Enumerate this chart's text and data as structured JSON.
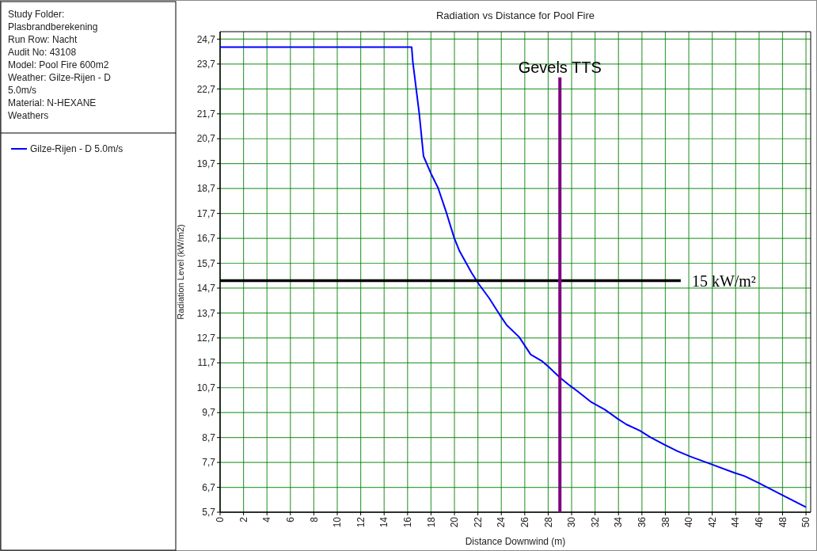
{
  "chart_data": {
    "type": "line",
    "title": "Radiation vs Distance for Pool Fire",
    "xlabel": "Distance Downwind (m)",
    "ylabel": "Radiation Level (kW/m2)",
    "annotations": [
      "Study Folder:",
      "Plasbrandberekening",
      "Run Row: Nacht",
      "Audit No: 43108",
      "Model: Pool Fire 600m2",
      "Weather: Gilze-Rijen - D",
      "5.0m/s",
      "Material: N-HEXANE",
      "Weathers"
    ],
    "series": [
      {
        "name": "Gilze-Rijen - D 5.0m/s",
        "color": "#0000ff",
        "x": [
          0,
          16.35,
          16.45,
          17.0,
          17.36,
          18.04,
          18.6,
          19.28,
          19.97,
          20.43,
          21.46,
          22.04,
          22.96,
          23.99,
          24.45,
          25.53,
          26.51,
          27.5,
          28.01,
          28.97,
          29.84,
          30.53,
          31.68,
          32.83,
          33.97,
          34.66,
          35.81,
          36.73,
          37.88,
          39.03,
          40.17,
          42.01,
          43.85,
          44.76,
          45.91,
          47.98,
          50
        ],
        "values": [
          24.38,
          24.38,
          23.78,
          21.7,
          20.0,
          19.26,
          18.73,
          17.78,
          16.73,
          16.19,
          15.32,
          14.89,
          14.3,
          13.54,
          13.22,
          12.73,
          12.03,
          11.76,
          11.55,
          11.12,
          10.79,
          10.55,
          10.12,
          9.82,
          9.44,
          9.23,
          8.98,
          8.71,
          8.42,
          8.15,
          7.93,
          7.61,
          7.29,
          7.15,
          6.89,
          6.39,
          5.9
        ]
      }
    ],
    "xlim": [
      0,
      50.4
    ],
    "xticks": [
      0,
      2,
      4,
      6,
      8,
      10,
      12,
      14,
      16,
      18,
      20,
      22,
      24,
      26,
      28,
      30,
      32,
      34,
      36,
      38,
      40,
      42,
      44,
      46,
      48,
      50
    ],
    "ylim": [
      5.7,
      25.0
    ],
    "yticks": [
      {
        "value": 5.7,
        "label": "5,7"
      },
      {
        "value": 6.7,
        "label": "6,7"
      },
      {
        "value": 7.7,
        "label": "7,7"
      },
      {
        "value": 8.7,
        "label": "8,7"
      },
      {
        "value": 9.7,
        "label": "9,7"
      },
      {
        "value": 10.7,
        "label": "10,7"
      },
      {
        "value": 11.7,
        "label": "11,7"
      },
      {
        "value": 12.7,
        "label": "12,7"
      },
      {
        "value": 13.7,
        "label": "13,7"
      },
      {
        "value": 14.7,
        "label": "14,7"
      },
      {
        "value": 15.7,
        "label": "15,7"
      },
      {
        "value": 16.7,
        "label": "16,7"
      },
      {
        "value": 17.7,
        "label": "17,7"
      },
      {
        "value": 18.7,
        "label": "18,7"
      },
      {
        "value": 19.7,
        "label": "19,7"
      },
      {
        "value": 20.7,
        "label": "20,7"
      },
      {
        "value": 21.7,
        "label": "21,7"
      },
      {
        "value": 22.7,
        "label": "22,7"
      },
      {
        "value": 23.7,
        "label": "23,7"
      },
      {
        "value": 24.7,
        "label": "24,7"
      }
    ],
    "ref_lines": [
      {
        "axis": "y",
        "value": 15,
        "label": "15 kW/m²",
        "color": "#000000"
      },
      {
        "axis": "x",
        "value": 29,
        "label": "Gevels TTS",
        "color": "#800080"
      }
    ],
    "grid": true,
    "legend": "left",
    "marker": "none",
    "line_style": "solid"
  }
}
